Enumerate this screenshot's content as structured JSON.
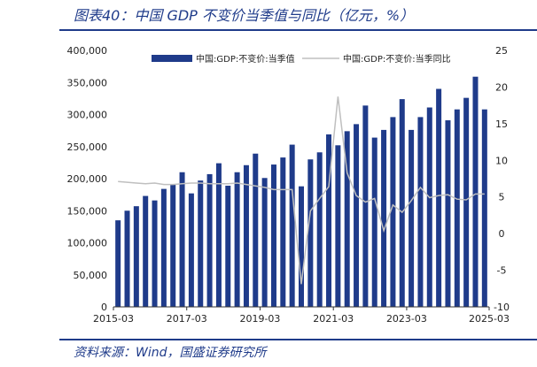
{
  "title": "图表40：中国 GDP 不变价当季值与同比（亿元，%）",
  "source": "资料来源：Wind，国盛证券研究所",
  "chart_data": {
    "type": "bar+line",
    "x": [
      "2015-03",
      "2015-06",
      "2015-09",
      "2015-12",
      "2016-03",
      "2016-06",
      "2016-09",
      "2016-12",
      "2017-03",
      "2017-06",
      "2017-09",
      "2017-12",
      "2018-03",
      "2018-06",
      "2018-09",
      "2018-12",
      "2019-03",
      "2019-06",
      "2019-09",
      "2019-12",
      "2020-03",
      "2020-06",
      "2020-09",
      "2020-12",
      "2021-03",
      "2021-06",
      "2021-09",
      "2021-12",
      "2022-03",
      "2022-06",
      "2022-09",
      "2022-12",
      "2023-03",
      "2023-06",
      "2023-09",
      "2023-12",
      "2024-03",
      "2024-06",
      "2024-09",
      "2024-12",
      "2025-03"
    ],
    "x_ticks": [
      "2015-03",
      "2017-03",
      "2019-03",
      "2021-03",
      "2023-03",
      "2025-03"
    ],
    "left_axis": {
      "ticks": [
        "0",
        "50,000",
        "100,000",
        "150,000",
        "200,000",
        "250,000",
        "300,000",
        "350,000",
        "400,000"
      ],
      "min": 0,
      "max": 400000
    },
    "right_axis": {
      "ticks": [
        "-10",
        "-5",
        "0",
        "5",
        "10",
        "15",
        "20",
        "25"
      ],
      "min": -10,
      "max": 25
    },
    "series": [
      {
        "name": "中国:GDP:不变价:当季值",
        "type": "bar",
        "axis": "left",
        "color": "#1f3b8a",
        "values": [
          135000,
          150000,
          157000,
          173000,
          166000,
          184000,
          191000,
          210000,
          177000,
          197000,
          207000,
          224000,
          189000,
          210000,
          221000,
          239000,
          201000,
          222000,
          233000,
          253000,
          188000,
          230000,
          241000,
          269000,
          252000,
          274000,
          285000,
          314000,
          264000,
          276000,
          296000,
          324000,
          276000,
          296000,
          311000,
          340000,
          291000,
          308000,
          326000,
          359000,
          308000
        ]
      },
      {
        "name": "中国:GDP:不变价:当季同比",
        "type": "line",
        "axis": "right",
        "color": "#bfbfbf",
        "values": [
          7.1,
          7.0,
          6.9,
          6.8,
          6.9,
          6.7,
          6.7,
          6.8,
          6.9,
          6.9,
          6.8,
          6.8,
          6.8,
          6.9,
          6.7,
          6.5,
          6.3,
          6.0,
          6.0,
          6.0,
          -6.9,
          3.1,
          4.8,
          6.4,
          18.7,
          8.3,
          5.2,
          4.3,
          4.8,
          0.4,
          3.9,
          2.9,
          4.5,
          6.3,
          4.9,
          5.2,
          5.3,
          4.7,
          4.6,
          5.4,
          5.4
        ]
      }
    ]
  }
}
